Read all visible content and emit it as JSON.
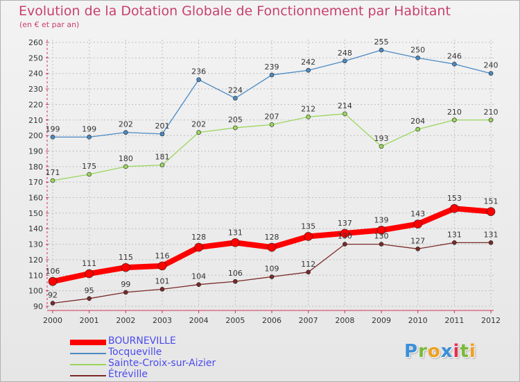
{
  "chart": {
    "title": "Evolution de la Dotation Globale de Fonctionnement par Habitant",
    "subtitle": "(en € et par an)"
  },
  "logo": {
    "text": "Proxiti",
    "letters": [
      "P",
      "r",
      "o",
      "x",
      "i",
      "t",
      "i"
    ],
    "colors": [
      "#3a8fd8",
      "#7ab93a",
      "#f0a020",
      "#3a8fd8",
      "#e03050",
      "#7ab93a",
      "#f0a020"
    ]
  },
  "chart_data": {
    "type": "line",
    "title": "Evolution de la Dotation Globale de Fonctionnement par Habitant",
    "subtitle": "(en € et par an)",
    "xlabel": "",
    "ylabel": "",
    "x": [
      "2000",
      "2001",
      "2002",
      "2003",
      "2004",
      "2005",
      "2006",
      "2007",
      "2008",
      "2009",
      "2010",
      "2011",
      "2012"
    ],
    "ylim": [
      90,
      260
    ],
    "yticks": [
      90,
      100,
      110,
      120,
      130,
      140,
      150,
      160,
      170,
      180,
      190,
      200,
      210,
      220,
      230,
      240,
      250,
      260
    ],
    "grid": true,
    "legend_position": "bottom-left",
    "series": [
      {
        "name": "BOURNEVILLE",
        "color": "#ff0000",
        "values": [
          106,
          111,
          115,
          116,
          128,
          131,
          128,
          135,
          137,
          139,
          143,
          153,
          151
        ]
      },
      {
        "name": "Tocqueville",
        "color": "#4b8ac4",
        "values": [
          199,
          199,
          202,
          201,
          236,
          224,
          239,
          242,
          248,
          255,
          250,
          246,
          240
        ]
      },
      {
        "name": "Sainte-Croix-sur-Aizier",
        "color": "#9bd65e",
        "values": [
          171,
          175,
          180,
          181,
          202,
          205,
          207,
          212,
          214,
          193,
          204,
          210,
          210
        ]
      },
      {
        "name": "Étréville",
        "color": "#7a2a2a",
        "values": [
          92,
          95,
          99,
          101,
          104,
          106,
          109,
          112,
          130,
          130,
          127,
          131,
          131
        ]
      }
    ]
  }
}
